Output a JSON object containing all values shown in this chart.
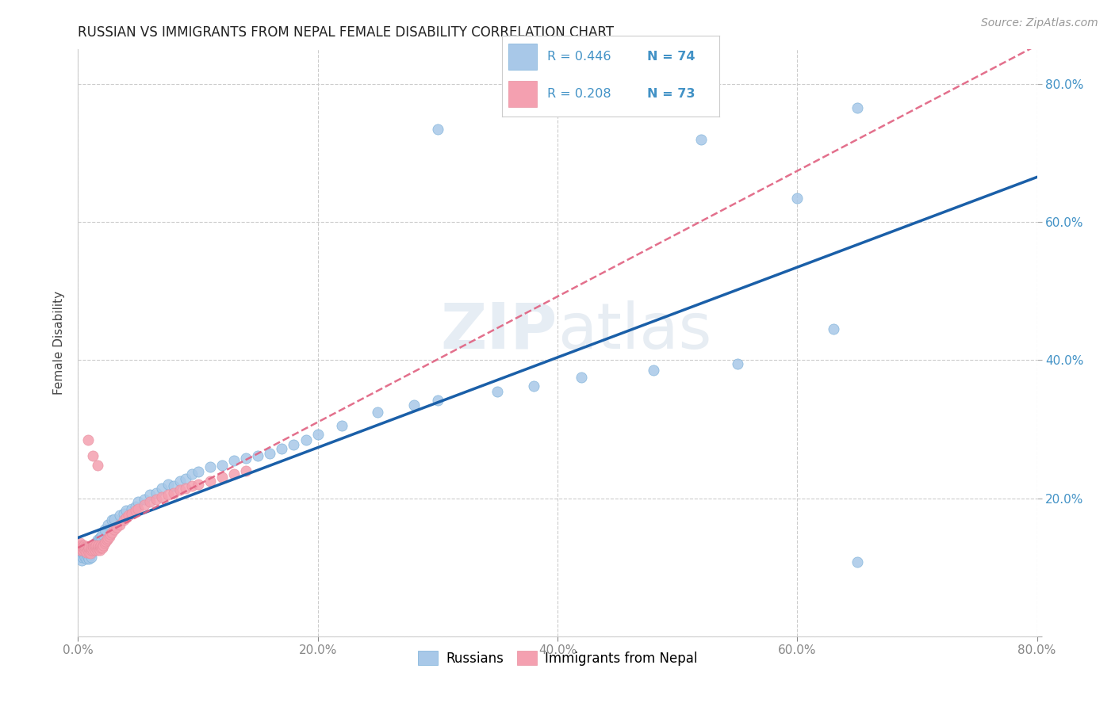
{
  "title": "RUSSIAN VS IMMIGRANTS FROM NEPAL FEMALE DISABILITY CORRELATION CHART",
  "source": "Source: ZipAtlas.com",
  "ylabel": "Female Disability",
  "watermark": "ZIPatlas",
  "xlim": [
    0.0,
    0.8
  ],
  "ylim": [
    0.0,
    0.85
  ],
  "xticks": [
    0.0,
    0.2,
    0.4,
    0.6,
    0.8
  ],
  "yticks": [
    0.0,
    0.2,
    0.4,
    0.6,
    0.8
  ],
  "xticklabels": [
    "0.0%",
    "20.0%",
    "40.0%",
    "60.0%",
    "80.0%"
  ],
  "blue_color": "#a8c8e8",
  "pink_color": "#f4a0b0",
  "blue_line_color": "#1a5fa8",
  "pink_line_color": "#e06080",
  "title_color": "#222222",
  "axis_label_color": "#444444",
  "tick_color_right": "#4292c6",
  "background_color": "#ffffff",
  "grid_color": "#cccccc",
  "legend_blue_text_color": "#4292c6",
  "legend_black_text_color": "#222222",
  "russians_x": [
    0.001,
    0.002,
    0.003,
    0.003,
    0.004,
    0.004,
    0.005,
    0.005,
    0.006,
    0.006,
    0.007,
    0.007,
    0.008,
    0.008,
    0.009,
    0.009,
    0.01,
    0.01,
    0.011,
    0.011,
    0.012,
    0.013,
    0.014,
    0.015,
    0.016,
    0.017,
    0.018,
    0.019,
    0.02,
    0.022,
    0.025,
    0.028,
    0.03,
    0.035,
    0.038,
    0.04,
    0.045,
    0.048,
    0.05,
    0.055,
    0.06,
    0.065,
    0.07,
    0.075,
    0.08,
    0.085,
    0.09,
    0.095,
    0.1,
    0.11,
    0.12,
    0.13,
    0.14,
    0.15,
    0.16,
    0.17,
    0.18,
    0.19,
    0.2,
    0.22,
    0.25,
    0.28,
    0.3,
    0.35,
    0.38,
    0.42,
    0.48,
    0.55,
    0.63,
    0.65,
    0.3,
    0.52,
    0.6,
    0.65
  ],
  "russians_y": [
    0.115,
    0.12,
    0.11,
    0.125,
    0.115,
    0.13,
    0.12,
    0.118,
    0.122,
    0.115,
    0.118,
    0.112,
    0.12,
    0.115,
    0.118,
    0.112,
    0.125,
    0.118,
    0.122,
    0.115,
    0.128,
    0.13,
    0.135,
    0.132,
    0.14,
    0.138,
    0.142,
    0.145,
    0.148,
    0.155,
    0.162,
    0.168,
    0.17,
    0.175,
    0.178,
    0.182,
    0.185,
    0.188,
    0.195,
    0.198,
    0.205,
    0.208,
    0.215,
    0.22,
    0.218,
    0.225,
    0.228,
    0.235,
    0.238,
    0.245,
    0.248,
    0.255,
    0.258,
    0.262,
    0.265,
    0.272,
    0.278,
    0.285,
    0.292,
    0.305,
    0.325,
    0.335,
    0.342,
    0.355,
    0.362,
    0.375,
    0.385,
    0.395,
    0.445,
    0.108,
    0.735,
    0.72,
    0.635,
    0.765
  ],
  "nepal_x": [
    0.001,
    0.002,
    0.002,
    0.003,
    0.003,
    0.004,
    0.004,
    0.005,
    0.005,
    0.006,
    0.006,
    0.007,
    0.007,
    0.008,
    0.008,
    0.009,
    0.009,
    0.01,
    0.01,
    0.011,
    0.011,
    0.012,
    0.012,
    0.013,
    0.013,
    0.014,
    0.014,
    0.015,
    0.015,
    0.016,
    0.016,
    0.017,
    0.017,
    0.018,
    0.018,
    0.019,
    0.019,
    0.02,
    0.02,
    0.021,
    0.022,
    0.023,
    0.024,
    0.025,
    0.026,
    0.027,
    0.028,
    0.03,
    0.032,
    0.035,
    0.038,
    0.04,
    0.042,
    0.045,
    0.048,
    0.05,
    0.055,
    0.06,
    0.065,
    0.07,
    0.075,
    0.08,
    0.085,
    0.09,
    0.095,
    0.1,
    0.11,
    0.12,
    0.13,
    0.14,
    0.008,
    0.012,
    0.016
  ],
  "nepal_y": [
    0.13,
    0.125,
    0.135,
    0.128,
    0.132,
    0.125,
    0.13,
    0.128,
    0.132,
    0.125,
    0.13,
    0.128,
    0.122,
    0.13,
    0.125,
    0.122,
    0.128,
    0.125,
    0.12,
    0.125,
    0.128,
    0.13,
    0.125,
    0.132,
    0.128,
    0.13,
    0.125,
    0.128,
    0.132,
    0.13,
    0.125,
    0.128,
    0.132,
    0.13,
    0.125,
    0.128,
    0.132,
    0.13,
    0.128,
    0.132,
    0.135,
    0.138,
    0.14,
    0.142,
    0.145,
    0.148,
    0.15,
    0.155,
    0.158,
    0.162,
    0.168,
    0.172,
    0.175,
    0.178,
    0.182,
    0.185,
    0.19,
    0.195,
    0.198,
    0.202,
    0.205,
    0.208,
    0.212,
    0.215,
    0.218,
    0.22,
    0.225,
    0.23,
    0.235,
    0.24,
    0.285,
    0.262,
    0.248
  ]
}
